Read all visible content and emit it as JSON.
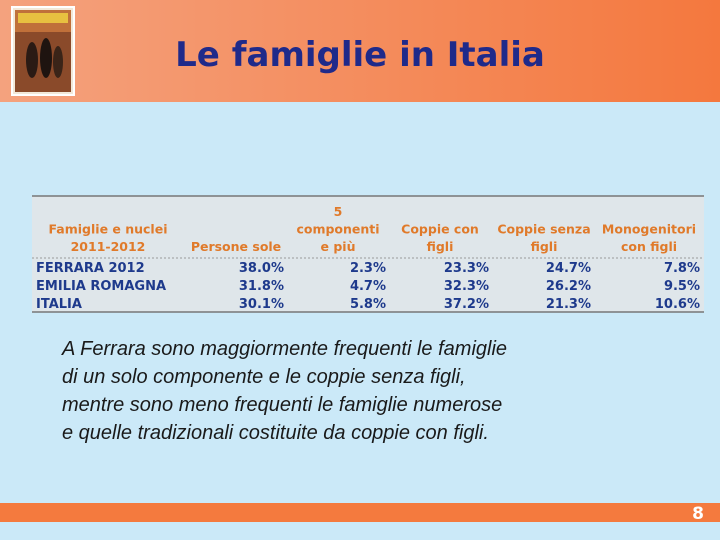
{
  "header": {
    "title": "Le famiglie in Italia"
  },
  "table": {
    "headers": [
      [
        "Famiglie e nuclei",
        "2011-2012"
      ],
      [
        "Persone sole"
      ],
      [
        "5",
        "componenti",
        "e più"
      ],
      [
        "Coppie con",
        "figli"
      ],
      [
        "Coppie senza",
        "figli"
      ],
      [
        "Monogenitori",
        "con figli"
      ]
    ],
    "rows": [
      [
        "FERRARA 2012",
        "38.0%",
        "2.3%",
        "23.3%",
        "24.7%",
        "7.8%"
      ],
      [
        "EMILIA ROMAGNA",
        "31.8%",
        "4.7%",
        "32.3%",
        "26.2%",
        "9.5%"
      ],
      [
        "ITALIA",
        "30.1%",
        "5.8%",
        "37.2%",
        "21.3%",
        "10.6%"
      ]
    ]
  },
  "body": {
    "lines": [
      "A Ferrara sono maggiormente frequenti le famiglie",
      "di un solo componente e le coppie senza figli,",
      "mentre sono meno frequenti le famiglie numerose",
      "e quelle tradizionali costituite da coppie con figli."
    ]
  },
  "footer": {
    "page": "8"
  }
}
